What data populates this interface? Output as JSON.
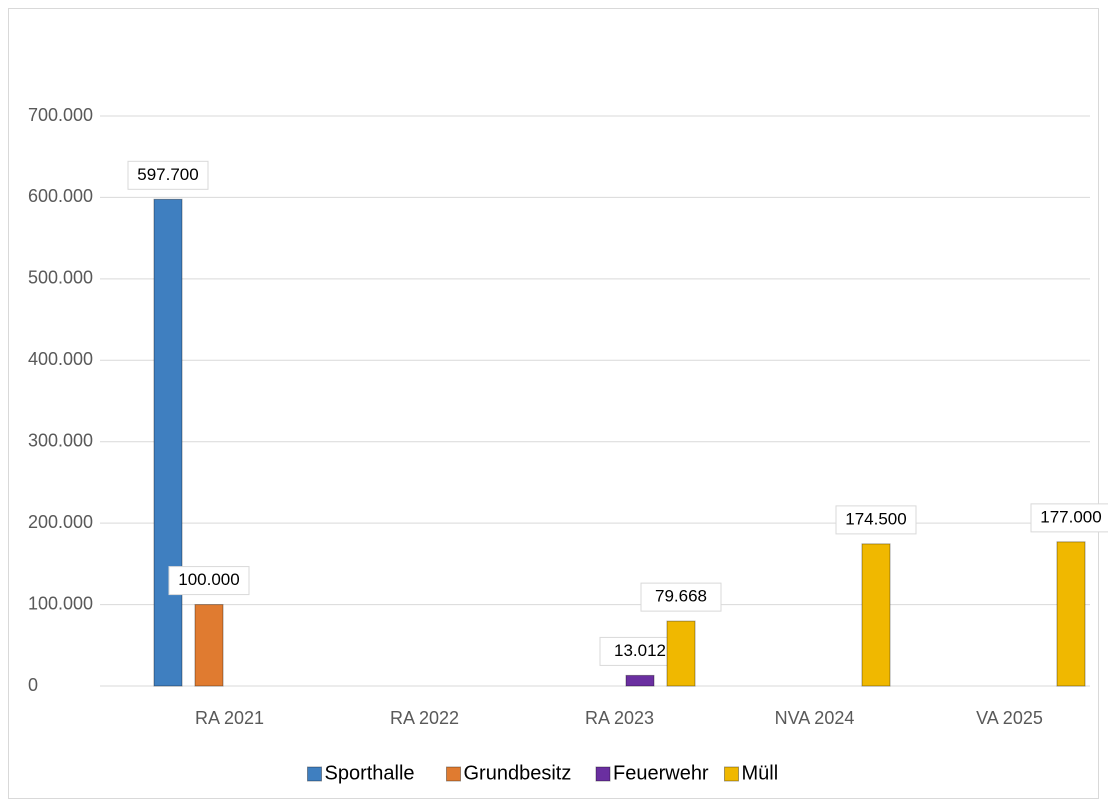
{
  "chart_data": {
    "type": "bar",
    "categories": [
      "RA 2021",
      "RA 2022",
      "RA 2023",
      "NVA 2024",
      "VA 2025"
    ],
    "series": [
      {
        "name": "Sporthalle",
        "color": "#3f7fc0",
        "values": [
          597700,
          null,
          null,
          null,
          null
        ],
        "value_labels": [
          "597.700",
          null,
          null,
          null,
          null
        ]
      },
      {
        "name": "Grundbesitz",
        "color": "#e07b30",
        "values": [
          100000,
          null,
          null,
          null,
          null
        ],
        "value_labels": [
          "100.000",
          null,
          null,
          null,
          null
        ]
      },
      {
        "name": "Feuerwehr",
        "color": "#6a2fa0",
        "values": [
          null,
          null,
          13012,
          null,
          null
        ],
        "value_labels": [
          null,
          null,
          "13.012",
          null,
          null
        ]
      },
      {
        "name": "Müll",
        "color": "#f0b800",
        "values": [
          null,
          null,
          79668,
          174500,
          177000
        ],
        "value_labels": [
          null,
          null,
          "79.668",
          "174.500",
          "177.000"
        ]
      }
    ],
    "ylim": [
      0,
      700000
    ],
    "yticks": [
      0,
      {
        "value": 100000,
        "label": "100.000"
      },
      {
        "value": 200000,
        "label": "200.000"
      },
      {
        "value": 300000,
        "label": "300.000"
      },
      {
        "value": 400000,
        "label": "400.000"
      },
      {
        "value": 500000,
        "label": "500.000"
      },
      {
        "value": 600000,
        "label": "600.000"
      },
      {
        "value": 700000,
        "label": "700.000"
      }
    ],
    "grid": true,
    "legend": "bottom"
  }
}
